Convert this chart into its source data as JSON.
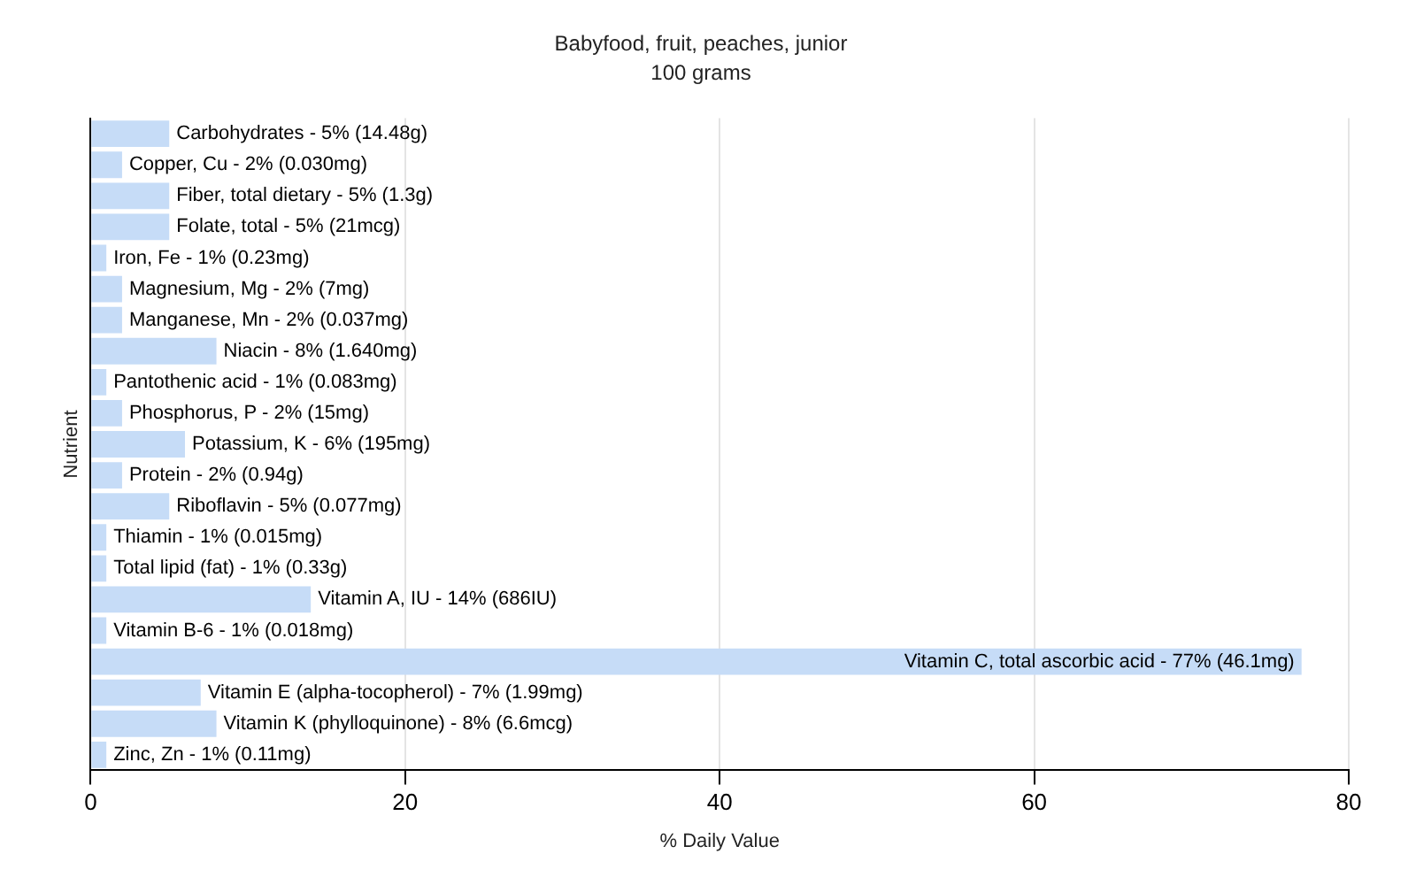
{
  "chart_data": {
    "type": "bar",
    "orientation": "horizontal",
    "title": "Babyfood, fruit, peaches, junior",
    "subtitle": "100 grams",
    "xlabel": "% Daily Value",
    "ylabel": "Nutrient",
    "categories": [
      "Carbohydrates -",
      "Copper, Cu -",
      "Fiber, total dietary -",
      "Folate, total -",
      "Iron, Fe -",
      "Magnesium, Mg -",
      "Manganese, Mn -",
      "Niacin -",
      "Pantothenic acid -",
      "Phosphorus, P -",
      "Potassium, K -",
      "Protein -",
      "Riboflavin -",
      "Thiamin -",
      "Total lipid (fat) -",
      "Vitamin A, IU -",
      "Vitamin B-6 -",
      "Vitamin C, total ascorbic acid -",
      "Vitamin E (alpha-tocopherol) -",
      "Vitamin K (phylloquinone) -",
      "Zinc, Zn -"
    ],
    "values": [
      5,
      2,
      5,
      5,
      1,
      2,
      2,
      8,
      1,
      2,
      6,
      2,
      5,
      1,
      1,
      14,
      1,
      77,
      7,
      8,
      1
    ],
    "value_labels": [
      "5% (14.48g)",
      "2% (0.030mg)",
      "5% (1.3g)",
      "5% (21mcg)",
      "1% (0.23mg)",
      "2% (7mg)",
      "2% (0.037mg)",
      "8% (1.640mg)",
      "1% (0.083mg)",
      "2% (15mg)",
      "6% (195mg)",
      "2% (0.94g)",
      "5% (0.077mg)",
      "1% (0.015mg)",
      "1% (0.33g)",
      "14% (686IU)",
      "1% (0.018mg)",
      "77% (46.1mg)",
      "7% (1.99mg)",
      "8% (6.6mcg)",
      "1% (0.11mg)"
    ],
    "color": "#c6dcf7",
    "xlim": [
      0,
      80
    ],
    "xticks": [
      0,
      20,
      40,
      60,
      80
    ],
    "grid": "x",
    "legend": false,
    "tick_labels": "x"
  }
}
